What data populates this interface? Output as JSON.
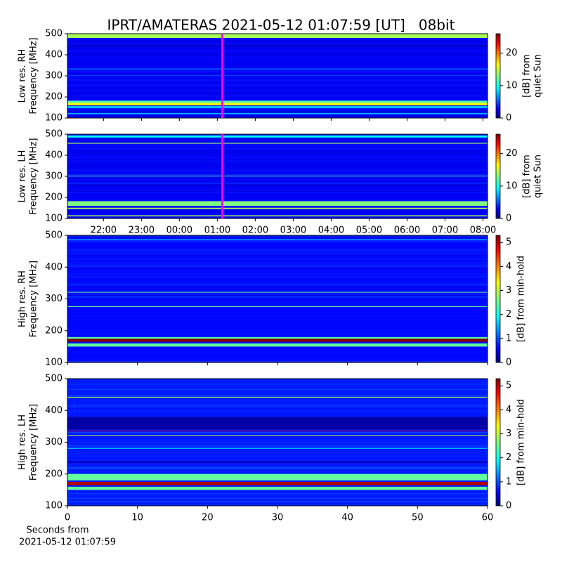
{
  "title": "IPRT/AMATERAS 2021-05-12 01:07:59 [UT]   08bit",
  "time_axis": {
    "xlim": [
      21.05,
      32.12
    ],
    "xticks": [
      {
        "value": 22,
        "label": "22:00"
      },
      {
        "value": 23,
        "label": "23:00"
      },
      {
        "value": 24,
        "label": "00:00"
      },
      {
        "value": 25,
        "label": "01:00"
      },
      {
        "value": 26,
        "label": "02:00"
      },
      {
        "value": 27,
        "label": "03:00"
      },
      {
        "value": 28,
        "label": "04:00"
      },
      {
        "value": 29,
        "label": "05:00"
      },
      {
        "value": 30,
        "label": "06:00"
      },
      {
        "value": 31,
        "label": "07:00"
      },
      {
        "value": 32,
        "label": "08:00"
      }
    ],
    "marker": 25.133,
    "marker_color": "#ff00ff"
  },
  "seconds_axis": {
    "xlim": [
      0,
      60
    ],
    "xticks": [
      0,
      10,
      20,
      30,
      40,
      50,
      60
    ],
    "xlabel": [
      "Seconds from",
      "2021-05-12 01:07:59"
    ]
  },
  "chart_data": [
    {
      "type": "heatmap",
      "ylabel": [
        "Low res. RH",
        "Frequency [MHz]"
      ],
      "ylim": [
        100,
        500
      ],
      "yticks": [
        100,
        200,
        300,
        400,
        500
      ],
      "x_axis": "time",
      "show_xtick_labels": false,
      "marker": true,
      "clim": [
        0,
        26
      ],
      "cticks": [
        0,
        10,
        20
      ],
      "clabel": [
        "[dB] from",
        "quiet Sun"
      ],
      "background_level": 3,
      "band_freqs": [
        [
          480,
          500
        ],
        [
          440,
          444
        ],
        [
          330,
          335
        ],
        [
          300,
          303
        ],
        [
          172,
          182
        ],
        [
          160,
          172
        ],
        [
          148,
          156
        ],
        [
          118,
          124
        ]
      ],
      "band_levels": [
        14,
        0,
        6,
        5,
        12,
        16,
        9,
        8
      ]
    },
    {
      "type": "heatmap",
      "ylabel": [
        "Low res. LH",
        "Frequency [MHz]"
      ],
      "ylim": [
        100,
        500
      ],
      "yticks": [
        100,
        200,
        300,
        400,
        500
      ],
      "x_axis": "time",
      "show_xtick_labels": true,
      "marker": true,
      "clim": [
        0,
        26
      ],
      "cticks": [
        0,
        10,
        20
      ],
      "clabel": [
        "[dB] from",
        "quiet Sun"
      ],
      "background_level": 3,
      "band_freqs": [
        [
          484,
          494
        ],
        [
          455,
          459
        ],
        [
          300,
          303
        ],
        [
          160,
          182
        ],
        [
          145,
          151
        ],
        [
          110,
          115
        ]
      ],
      "band_levels": [
        10,
        14,
        12,
        13,
        14,
        14
      ]
    },
    {
      "type": "heatmap",
      "ylabel": [
        "High res. RH",
        "Frequency [MHz]"
      ],
      "ylim": [
        100,
        500
      ],
      "yticks": [
        100,
        200,
        300,
        400,
        500
      ],
      "x_axis": "seconds",
      "show_xtick_labels": false,
      "marker": false,
      "clim": [
        0,
        5.3
      ],
      "cticks": [
        0,
        1,
        2,
        3,
        4,
        5
      ],
      "clabel": [
        "[dB] from min-hold"
      ],
      "background_level": 0.7,
      "band_freqs": [
        [
          485,
          487
        ],
        [
          320,
          322
        ],
        [
          275,
          277
        ],
        [
          175,
          180
        ],
        [
          165,
          175
        ],
        [
          150,
          160
        ]
      ],
      "band_levels": [
        2,
        2.5,
        2.5,
        2.5,
        5.3,
        2.5
      ]
    },
    {
      "type": "heatmap",
      "ylabel": [
        "High res. LH",
        "Frequency [MHz]"
      ],
      "ylim": [
        100,
        500
      ],
      "yticks": [
        100,
        200,
        300,
        400,
        500
      ],
      "x_axis": "seconds",
      "show_xtick_labels": true,
      "marker": false,
      "clim": [
        0,
        5.3
      ],
      "cticks": [
        0,
        1,
        2,
        3,
        4,
        5
      ],
      "clabel": [
        "[dB] from min-hold"
      ],
      "background_level": 0.8,
      "band_freqs": [
        [
          440,
          442
        ],
        [
          340,
          380
        ],
        [
          335,
          337
        ],
        [
          320,
          322
        ],
        [
          280,
          282
        ],
        [
          235,
          240
        ],
        [
          180,
          200
        ],
        [
          165,
          175
        ],
        [
          150,
          160
        ]
      ],
      "band_levels": [
        3,
        0.2,
        5,
        3,
        2,
        0.3,
        2.5,
        5,
        2.5
      ]
    }
  ]
}
